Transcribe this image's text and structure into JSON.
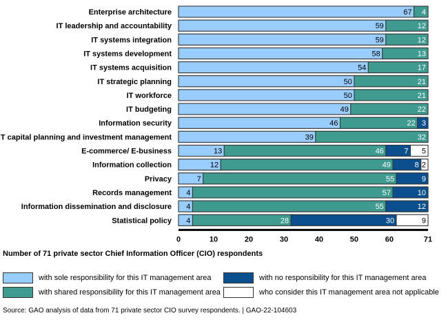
{
  "chart_data": {
    "type": "bar",
    "orientation": "horizontal",
    "stacked": true,
    "categories": [
      "Enterprise architecture",
      "IT leadership and accountability",
      "IT systems integration",
      "IT systems development",
      "IT systems acquisition",
      "IT strategic planning",
      "IT workforce",
      "IT budgeting",
      "Information security",
      "IT capital planning and investment management",
      "E-commerce/ E-business",
      "Information collection",
      "Privacy",
      "Records management",
      "Information dissemination and disclosure",
      "Statistical policy"
    ],
    "series": [
      {
        "name": "with sole responsibility for this IT management area",
        "color": "#99ccff",
        "label_color": "#000000",
        "values": [
          67,
          59,
          59,
          58,
          54,
          50,
          50,
          49,
          46,
          39,
          13,
          12,
          7,
          4,
          4,
          4
        ]
      },
      {
        "name": "with shared responsibility for this IT management area",
        "color": "#3f9b90",
        "label_color": "#ffffff",
        "values": [
          4,
          12,
          12,
          13,
          17,
          21,
          21,
          22,
          22,
          32,
          46,
          49,
          55,
          57,
          55,
          28
        ]
      },
      {
        "name": "with no responsibility for this IT management area",
        "color": "#0b4f8f",
        "label_color": "#ffffff",
        "values": [
          0,
          0,
          0,
          0,
          0,
          0,
          0,
          0,
          3,
          0,
          7,
          8,
          9,
          10,
          12,
          30
        ]
      },
      {
        "name": "who consider this IT management area not applicable",
        "color": "#ffffff",
        "label_color": "#000000",
        "values": [
          0,
          0,
          0,
          0,
          0,
          0,
          0,
          0,
          0,
          0,
          5,
          2,
          0,
          0,
          0,
          9
        ]
      }
    ],
    "xlabel": "Number of 71 private sector Chief Information Officer (CIO) respondents",
    "xticks": [
      0,
      10,
      20,
      30,
      40,
      50,
      60,
      71
    ],
    "xlim": [
      0,
      71
    ],
    "grid": false,
    "legend_position": "bottom"
  },
  "source": "Source: GAO analysis of data from 71 private sector CIO survey respondents.  |  GAO-22-104603"
}
